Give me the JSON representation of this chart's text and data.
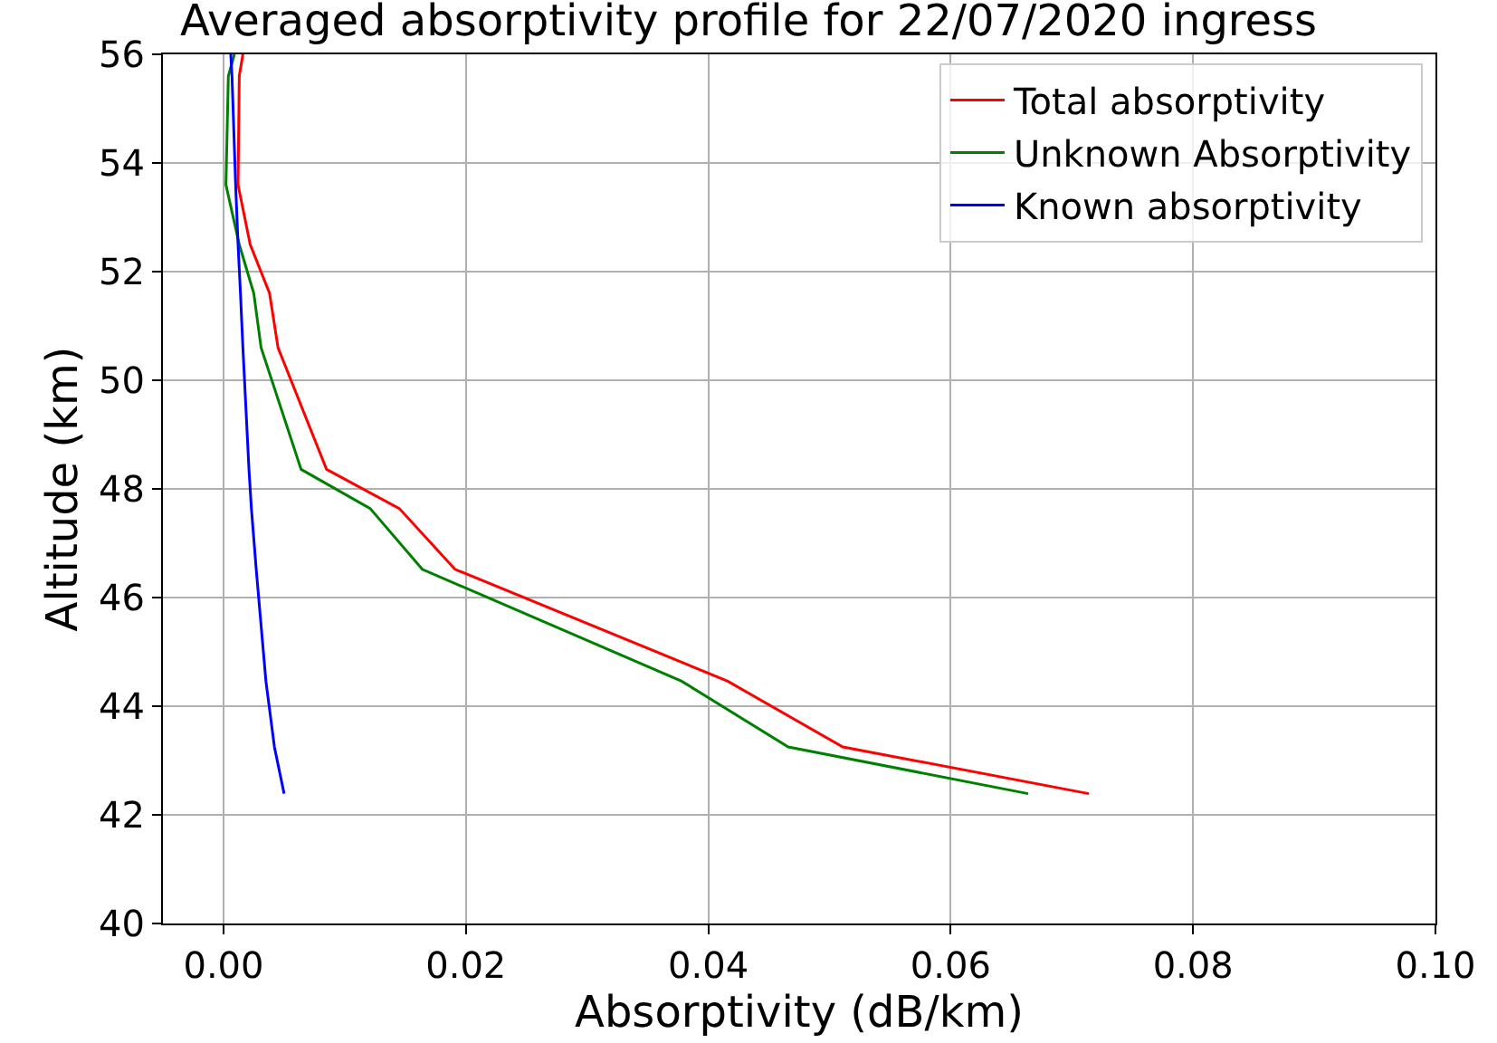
{
  "chart_data": {
    "type": "line",
    "title": "Averaged absorptivity profile for 22/07/2020 ingress",
    "xlabel": "Absorptivity (dB/km)",
    "ylabel": "Altitude (km)",
    "xlim": [
      -0.005,
      0.1
    ],
    "xticks": [
      {
        "value": 0,
        "label": "0.00"
      },
      {
        "value": 0.02,
        "label": "0.02"
      },
      {
        "value": 0.04,
        "label": "0.04"
      },
      {
        "value": 0.06,
        "label": "0.06"
      },
      {
        "value": 0.08,
        "label": "0.08"
      },
      {
        "value": 0.1,
        "label": "0.10"
      }
    ],
    "ylim": [
      40,
      56
    ],
    "yticks": [
      40,
      42,
      44,
      46,
      48,
      50,
      52,
      54,
      56
    ],
    "grid": true,
    "legend": "top right",
    "series": [
      {
        "name": "Total absorptivity",
        "color": "#ff0000",
        "x": [
          0.0016,
          0.0013,
          0.0012,
          0.0022,
          0.0038,
          0.0045,
          0.0085,
          0.0145,
          0.0191,
          0.0416,
          0.0511,
          0.0714
        ],
        "values": [
          56,
          55.6,
          53.6,
          52.5,
          51.6,
          50.6,
          48.36,
          47.64,
          46.52,
          44.46,
          43.25,
          42.39
        ]
      },
      {
        "name": "Unknown Absorptivity",
        "color": "#008000",
        "x": [
          0.0009,
          0.0004,
          0.0002,
          0.0013,
          0.0025,
          0.0031,
          0.0064,
          0.0121,
          0.0164,
          0.0378,
          0.0466,
          0.0664
        ],
        "values": [
          56,
          55.6,
          53.6,
          52.5,
          51.6,
          50.6,
          48.36,
          47.64,
          46.52,
          44.46,
          43.25,
          42.39
        ]
      },
      {
        "name": "Known absorptivity",
        "color": "#0000ff",
        "x": [
          0.0006,
          0.0007,
          0.001,
          0.0012,
          0.0014,
          0.0016,
          0.0021,
          0.0023,
          0.0027,
          0.0035,
          0.0042,
          0.005
        ],
        "values": [
          56,
          55.6,
          53.6,
          52.5,
          51.6,
          50.6,
          48.36,
          47.64,
          46.52,
          44.46,
          43.25,
          42.39
        ]
      }
    ]
  }
}
